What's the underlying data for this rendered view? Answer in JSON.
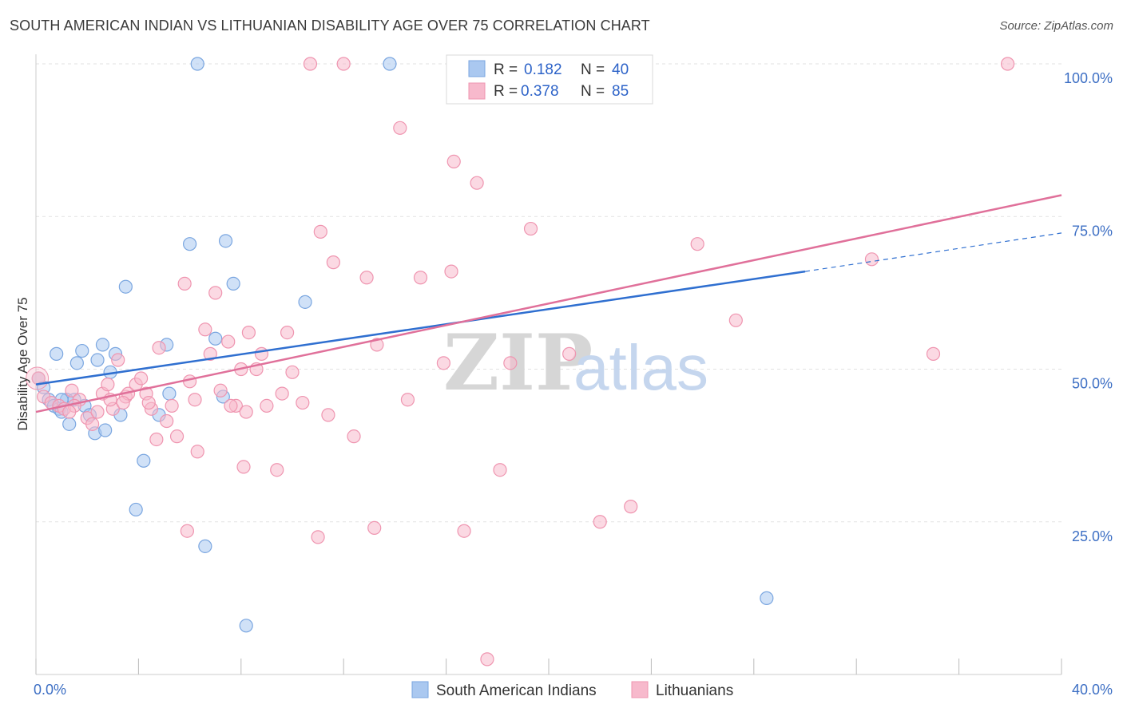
{
  "title": "SOUTH AMERICAN INDIAN VS LITHUANIAN DISABILITY AGE OVER 75 CORRELATION CHART",
  "source": "Source: ZipAtlas.com",
  "watermark": {
    "zip": "ZIP",
    "atlas": "atlas"
  },
  "colors": {
    "blue_fill": "#aac8f0",
    "blue_stroke": "#7aa6e0",
    "blue_line": "#2f6fd0",
    "pink_fill": "#f7b9cc",
    "pink_stroke": "#ef95b0",
    "pink_line": "#e0709a",
    "grid": "#e2e2e2",
    "tick_label": "#3d6fc4"
  },
  "legend": {
    "rows": [
      {
        "r_label": "R =",
        "r_value": "0.182",
        "n_label": "N =",
        "n_value": "40",
        "color": "blue"
      },
      {
        "r_label": "R =",
        "r_value": "0.378",
        "n_label": "N =",
        "n_value": "85",
        "color": "pink"
      }
    ]
  },
  "chart_data": {
    "type": "scatter",
    "title": "SOUTH AMERICAN INDIAN VS LITHUANIAN DISABILITY AGE OVER 75 CORRELATION CHART",
    "xlabel": "",
    "ylabel": "Disability Age Over 75",
    "xlim": [
      0,
      40
    ],
    "ylim": [
      0,
      100
    ],
    "x_tick_labels": {
      "left": "0.0%",
      "right": "40.0%"
    },
    "y_ticks": [
      {
        "value": 100,
        "label": "100.0%"
      },
      {
        "value": 75,
        "label": "75.0%"
      },
      {
        "value": 50,
        "label": "50.0%"
      },
      {
        "value": 25,
        "label": "25.0%"
      }
    ],
    "grid": true,
    "legend_position": "top-center",
    "series": [
      {
        "name": "South American Indians",
        "color": "blue",
        "trend": {
          "x0": 0,
          "y0": 47.5,
          "x1": 30,
          "y1": 66.0,
          "dash_x1": 40,
          "dash_y1": 72.3
        },
        "points": [
          [
            0.1,
            48.5
          ],
          [
            0.3,
            47.0
          ],
          [
            0.5,
            45.0
          ],
          [
            0.7,
            44.0
          ],
          [
            0.8,
            52.5
          ],
          [
            0.9,
            43.5
          ],
          [
            1.0,
            43.0
          ],
          [
            1.2,
            45.0
          ],
          [
            1.3,
            41.0
          ],
          [
            1.5,
            45.0
          ],
          [
            1.6,
            51.0
          ],
          [
            1.8,
            53.0
          ],
          [
            1.9,
            44.0
          ],
          [
            2.1,
            42.5
          ],
          [
            2.3,
            39.5
          ],
          [
            2.4,
            51.5
          ],
          [
            2.6,
            54.0
          ],
          [
            2.7,
            40.0
          ],
          [
            2.9,
            49.5
          ],
          [
            3.1,
            52.5
          ],
          [
            3.3,
            42.5
          ],
          [
            3.5,
            63.5
          ],
          [
            4.2,
            35.0
          ],
          [
            3.9,
            27.0
          ],
          [
            4.8,
            42.5
          ],
          [
            5.2,
            46.0
          ],
          [
            5.1,
            54.0
          ],
          [
            6.0,
            70.5
          ],
          [
            6.3,
            100.0
          ],
          [
            6.6,
            21.0
          ],
          [
            7.0,
            55.0
          ],
          [
            7.3,
            45.5
          ],
          [
            7.4,
            71.0
          ],
          [
            7.7,
            64.0
          ],
          [
            8.2,
            8.0
          ],
          [
            10.5,
            61.0
          ],
          [
            13.8,
            100.0
          ],
          [
            22.5,
            100.0
          ],
          [
            28.5,
            12.5
          ],
          [
            1.0,
            45.0
          ]
        ]
      },
      {
        "name": "Lithuanians",
        "color": "pink",
        "trend": {
          "x0": 0,
          "y0": 43.0,
          "x1": 40,
          "y1": 78.5
        },
        "points": [
          [
            0.1,
            48.5
          ],
          [
            0.3,
            45.5
          ],
          [
            0.6,
            44.5
          ],
          [
            0.9,
            44.0
          ],
          [
            1.1,
            43.5
          ],
          [
            1.4,
            46.5
          ],
          [
            1.7,
            45.0
          ],
          [
            2.0,
            42.0
          ],
          [
            2.2,
            41.0
          ],
          [
            2.4,
            43.0
          ],
          [
            2.6,
            46.0
          ],
          [
            2.8,
            47.5
          ],
          [
            3.0,
            43.5
          ],
          [
            3.2,
            51.5
          ],
          [
            3.5,
            45.5
          ],
          [
            3.6,
            46.0
          ],
          [
            3.9,
            47.5
          ],
          [
            4.1,
            48.5
          ],
          [
            4.3,
            46.0
          ],
          [
            4.5,
            43.5
          ],
          [
            4.7,
            38.5
          ],
          [
            4.8,
            53.5
          ],
          [
            5.1,
            41.5
          ],
          [
            5.3,
            44.0
          ],
          [
            5.5,
            39.0
          ],
          [
            5.8,
            64.0
          ],
          [
            5.9,
            23.5
          ],
          [
            6.2,
            45.0
          ],
          [
            6.3,
            36.5
          ],
          [
            6.6,
            56.5
          ],
          [
            6.8,
            52.5
          ],
          [
            7.0,
            62.5
          ],
          [
            7.2,
            46.5
          ],
          [
            7.5,
            54.5
          ],
          [
            7.8,
            44.0
          ],
          [
            8.0,
            50.0
          ],
          [
            8.1,
            34.0
          ],
          [
            8.3,
            56.0
          ],
          [
            8.6,
            50.0
          ],
          [
            8.8,
            52.5
          ],
          [
            9.0,
            44.0
          ],
          [
            9.4,
            33.5
          ],
          [
            9.6,
            46.0
          ],
          [
            9.8,
            56.0
          ],
          [
            10.0,
            49.5
          ],
          [
            10.4,
            44.5
          ],
          [
            10.7,
            100.0
          ],
          [
            11.0,
            22.5
          ],
          [
            11.1,
            72.5
          ],
          [
            11.4,
            42.5
          ],
          [
            11.6,
            67.5
          ],
          [
            12.0,
            100.0
          ],
          [
            12.4,
            39.0
          ],
          [
            12.9,
            65.0
          ],
          [
            13.3,
            54.0
          ],
          [
            13.2,
            24.0
          ],
          [
            14.2,
            89.5
          ],
          [
            14.5,
            45.0
          ],
          [
            15.0,
            65.0
          ],
          [
            15.9,
            51.0
          ],
          [
            16.2,
            66.0
          ],
          [
            16.3,
            84.0
          ],
          [
            16.7,
            23.5
          ],
          [
            17.2,
            80.5
          ],
          [
            17.6,
            2.5
          ],
          [
            18.1,
            33.5
          ],
          [
            18.5,
            51.0
          ],
          [
            19.3,
            73.0
          ],
          [
            20.8,
            52.5
          ],
          [
            22.0,
            25.0
          ],
          [
            23.2,
            27.5
          ],
          [
            23.8,
            100.0
          ],
          [
            25.8,
            70.5
          ],
          [
            27.3,
            58.0
          ],
          [
            32.6,
            68.0
          ],
          [
            35.0,
            52.5
          ],
          [
            37.9,
            100.0
          ],
          [
            1.5,
            44.0
          ],
          [
            2.9,
            45.0
          ],
          [
            3.4,
            44.5
          ],
          [
            4.4,
            44.5
          ],
          [
            6.0,
            48.0
          ],
          [
            7.6,
            44.0
          ],
          [
            8.2,
            43.0
          ],
          [
            1.3,
            43.0
          ]
        ]
      }
    ]
  },
  "bottom_legend": [
    {
      "label": "South American Indians",
      "color": "blue"
    },
    {
      "label": "Lithuanians",
      "color": "pink"
    }
  ]
}
